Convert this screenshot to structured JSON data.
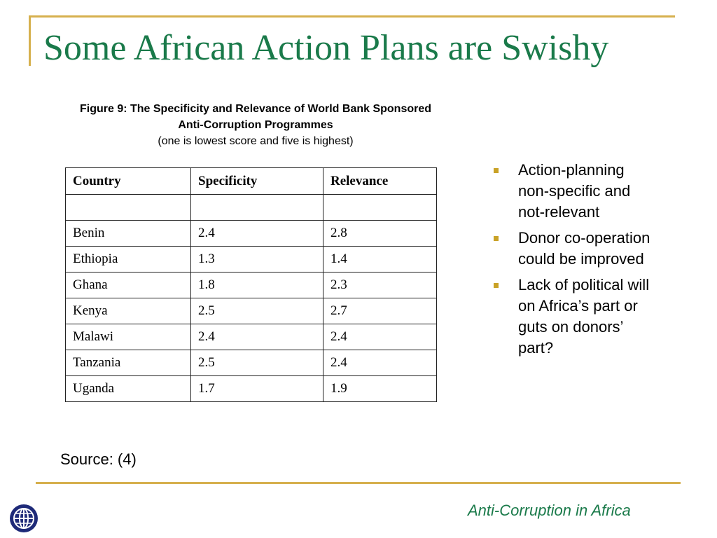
{
  "slide": {
    "title": "Some African Action Plans are Swishy",
    "caption_line1": "Figure 9: The Specificity and Relevance of World Bank Sponsored",
    "caption_line2": "Anti-Corruption Programmes",
    "caption_line3": "(one is lowest score and five is highest)",
    "source": "Source: (4)",
    "footer": "Anti-Corruption in Africa"
  },
  "table": {
    "headers": [
      "Country",
      "Specificity",
      "Relevance"
    ],
    "rows": [
      [
        "",
        "",
        ""
      ],
      [
        "Benin",
        "2.4",
        "2.8"
      ],
      [
        "Ethiopia",
        "1.3",
        "1.4"
      ],
      [
        "Ghana",
        "1.8",
        "2.3"
      ],
      [
        "Kenya",
        "2.5",
        "2.7"
      ],
      [
        "Malawi",
        "2.4",
        "2.4"
      ],
      [
        "Tanzania",
        "2.5",
        "2.4"
      ],
      [
        "Uganda",
        "1.7",
        "1.9"
      ]
    ]
  },
  "bullets": [
    "Action-planning non-specific and not-relevant",
    "Donor co-operation could be improved",
    "Lack of political will on Africa’s part or guts on donors’ part?"
  ],
  "colors": {
    "title": "#1a7a4a",
    "accent_gold": "#d6b04e",
    "bullet": "#c9a227",
    "logo": "#1e2a78"
  },
  "icons": {
    "logo": "globe-logo-icon",
    "bullet": "square-bullet-icon"
  }
}
